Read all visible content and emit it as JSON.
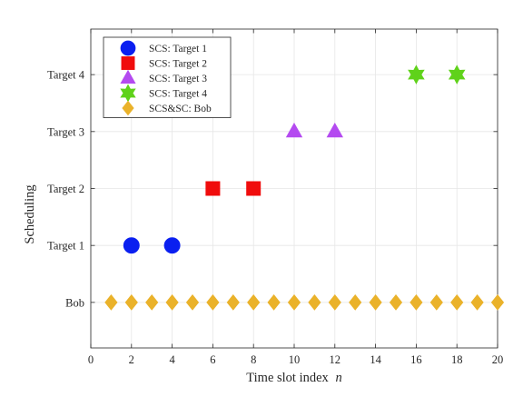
{
  "chart_data": {
    "type": "scatter",
    "title": "",
    "xlabel": "Time slot index",
    "xlabel_var": "n",
    "ylabel": "Scheduling",
    "xlim": [
      0,
      20
    ],
    "ylim": [
      -0.8,
      4.8
    ],
    "xticks": [
      0,
      2,
      4,
      6,
      8,
      10,
      12,
      14,
      16,
      18,
      20
    ],
    "yticks": [
      {
        "value": 0,
        "label": "Bob"
      },
      {
        "value": 1,
        "label": "Target 1"
      },
      {
        "value": 2,
        "label": "Target 2"
      },
      {
        "value": 3,
        "label": "Target 3"
      },
      {
        "value": 4,
        "label": "Target 4"
      }
    ],
    "grid": true,
    "legend_position": "top-left",
    "series": [
      {
        "name": "SCS: Target 1",
        "marker": "circle",
        "color": "#0a1ff0",
        "points": [
          {
            "x": 2,
            "y": 1
          },
          {
            "x": 4,
            "y": 1
          }
        ]
      },
      {
        "name": "SCS: Target 2",
        "marker": "square",
        "color": "#f00c0c",
        "points": [
          {
            "x": 6,
            "y": 2
          },
          {
            "x": 8,
            "y": 2
          }
        ]
      },
      {
        "name": "SCS: Target 3",
        "marker": "triangle",
        "color": "#b44af0",
        "points": [
          {
            "x": 10,
            "y": 3
          },
          {
            "x": 12,
            "y": 3
          }
        ]
      },
      {
        "name": "SCS: Target 4",
        "marker": "hexagram",
        "color": "#5fd21a",
        "points": [
          {
            "x": 16,
            "y": 4
          },
          {
            "x": 18,
            "y": 4
          }
        ]
      },
      {
        "name": "SCS&SC: Bob",
        "marker": "diamond",
        "color": "#eab22a",
        "points": [
          {
            "x": 1,
            "y": 0
          },
          {
            "x": 2,
            "y": 0
          },
          {
            "x": 3,
            "y": 0
          },
          {
            "x": 4,
            "y": 0
          },
          {
            "x": 5,
            "y": 0
          },
          {
            "x": 6,
            "y": 0
          },
          {
            "x": 7,
            "y": 0
          },
          {
            "x": 8,
            "y": 0
          },
          {
            "x": 9,
            "y": 0
          },
          {
            "x": 10,
            "y": 0
          },
          {
            "x": 11,
            "y": 0
          },
          {
            "x": 12,
            "y": 0
          },
          {
            "x": 13,
            "y": 0
          },
          {
            "x": 14,
            "y": 0
          },
          {
            "x": 15,
            "y": 0
          },
          {
            "x": 16,
            "y": 0
          },
          {
            "x": 17,
            "y": 0
          },
          {
            "x": 18,
            "y": 0
          },
          {
            "x": 19,
            "y": 0
          },
          {
            "x": 20,
            "y": 0
          }
        ]
      }
    ]
  }
}
